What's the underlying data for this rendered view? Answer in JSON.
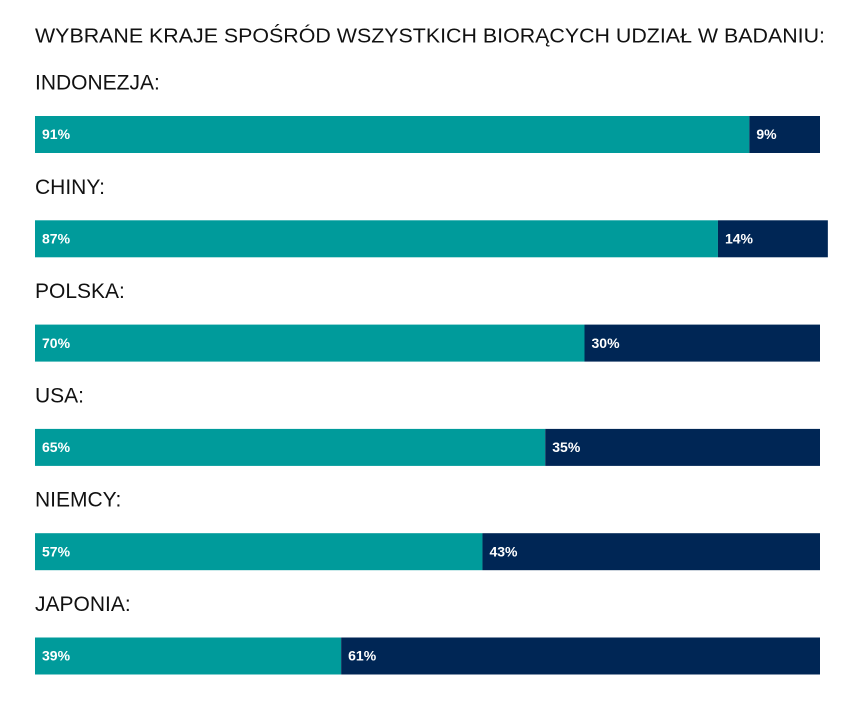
{
  "chart_data": {
    "type": "stacked-bar-horizontal",
    "title": "WYBRANE KRAJE SPOŚRÓD WSZYSTKICH BIORĄCYCH UDZIAŁ W BADANIU:",
    "categories": [
      "INDONEZJA:",
      "CHINY:",
      "POLSKA:",
      "USA:",
      "NIEMCY:",
      "JAPONIA:"
    ],
    "series": [
      {
        "color": "#009b9b",
        "values": [
          91,
          87,
          70,
          65,
          57,
          39
        ],
        "value_labels": [
          "91%",
          "87%",
          "70%",
          "65%",
          "57%",
          "39%"
        ]
      },
      {
        "color": "#002655",
        "values": [
          9,
          14,
          30,
          35,
          43,
          61
        ],
        "value_labels": [
          "9%",
          "14%",
          "30%",
          "35%",
          "43%",
          "61%"
        ]
      }
    ]
  }
}
